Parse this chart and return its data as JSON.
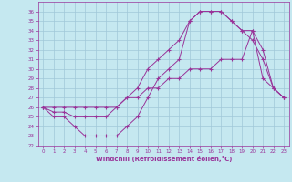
{
  "xlabel": "Windchill (Refroidissement éolien,°C)",
  "background_color": "#c5e8f0",
  "grid_color": "#a0c8d8",
  "line_color": "#993399",
  "xlim": [
    -0.5,
    23.5
  ],
  "ylim": [
    22,
    37
  ],
  "xticks": [
    0,
    1,
    2,
    3,
    4,
    5,
    6,
    7,
    8,
    9,
    10,
    11,
    12,
    13,
    14,
    15,
    16,
    17,
    18,
    19,
    20,
    21,
    22,
    23
  ],
  "yticks": [
    22,
    23,
    24,
    25,
    26,
    27,
    28,
    29,
    30,
    31,
    32,
    33,
    34,
    35,
    36
  ],
  "line1_x": [
    0,
    1,
    2,
    3,
    4,
    5,
    6,
    7,
    8,
    9,
    10,
    11,
    12,
    13,
    14,
    15,
    16,
    17,
    18,
    19,
    20,
    21,
    22,
    23
  ],
  "line1_y": [
    26,
    25,
    25,
    24,
    23,
    23,
    23,
    23,
    24,
    25,
    27,
    29,
    30,
    31,
    35,
    36,
    36,
    36,
    35,
    34,
    34,
    32,
    28,
    27
  ],
  "line2_x": [
    0,
    1,
    2,
    3,
    4,
    5,
    6,
    7,
    8,
    9,
    10,
    11,
    12,
    13,
    14,
    15,
    16,
    17,
    18,
    19,
    20,
    21,
    22,
    23
  ],
  "line2_y": [
    26,
    25.5,
    25.5,
    25,
    25,
    25,
    25,
    26,
    27,
    28,
    30,
    31,
    32,
    33,
    35,
    36,
    36,
    36,
    35,
    34,
    33,
    31,
    28,
    27
  ],
  "line3_x": [
    0,
    1,
    2,
    3,
    4,
    5,
    6,
    7,
    8,
    9,
    10,
    11,
    12,
    13,
    14,
    15,
    16,
    17,
    18,
    19,
    20,
    21,
    22,
    23
  ],
  "line3_y": [
    26,
    26,
    26,
    26,
    26,
    26,
    26,
    26,
    27,
    27,
    28,
    28,
    29,
    29,
    30,
    30,
    30,
    31,
    31,
    31,
    34,
    29,
    28,
    27
  ]
}
